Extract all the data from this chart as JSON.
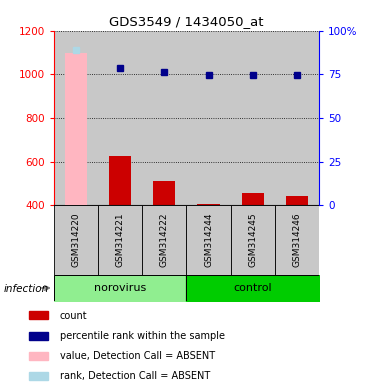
{
  "title": "GDS3549 / 1434050_at",
  "samples": [
    "GSM314220",
    "GSM314221",
    "GSM314222",
    "GSM314244",
    "GSM314245",
    "GSM314246"
  ],
  "count_values": [
    410,
    625,
    510,
    408,
    458,
    445
  ],
  "count_absent": [
    true,
    false,
    false,
    false,
    false,
    false
  ],
  "value_absent": [
    1100,
    null,
    null,
    null,
    null,
    null
  ],
  "percentile_values": [
    1110,
    1030,
    1010,
    995,
    995,
    995
  ],
  "percentile_absent": [
    true,
    false,
    false,
    false,
    false,
    false
  ],
  "ylim_left": [
    400,
    1200
  ],
  "yticks_left": [
    400,
    600,
    800,
    1000,
    1200
  ],
  "yticks_right": [
    0,
    25,
    50,
    75,
    100
  ],
  "bar_color_normal": "#CC0000",
  "bar_color_absent": "#FFB6C1",
  "dot_color_normal": "#00008B",
  "dot_color_absent": "#ADD8E6",
  "bg_color_sample": "#C8C8C8",
  "norovirus_color": "#90EE90",
  "control_color": "#00CC00",
  "norovirus_indices": [
    0,
    1,
    2
  ],
  "control_indices": [
    3,
    4,
    5
  ],
  "infection_label": "infection",
  "legend_items": [
    {
      "label": "count",
      "color": "#CC0000"
    },
    {
      "label": "percentile rank within the sample",
      "color": "#00008B"
    },
    {
      "label": "value, Detection Call = ABSENT",
      "color": "#FFB6C1"
    },
    {
      "label": "rank, Detection Call = ABSENT",
      "color": "#ADD8E6"
    }
  ]
}
